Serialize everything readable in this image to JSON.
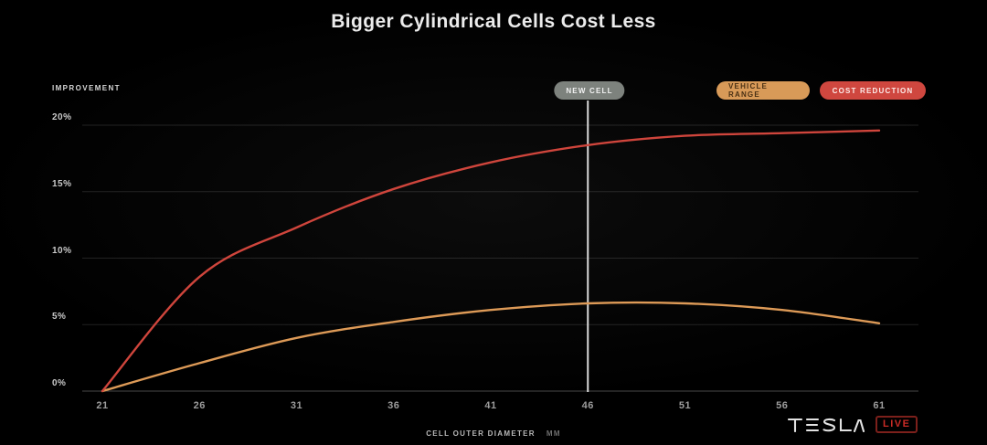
{
  "title": "Bigger Cylindrical Cells Cost Less",
  "ylabel": "IMPROVEMENT",
  "annotation": {
    "label": "NEW CELL",
    "x": 46
  },
  "legend": [
    {
      "label": "VEHICLE RANGE",
      "bg": "#d89a58",
      "fg": "#4a3115"
    },
    {
      "label": "COST REDUCTION",
      "bg": "#cf473f",
      "fg": "#fdecea"
    }
  ],
  "xaxis": {
    "title": "CELL OUTER DIAMETER",
    "unit": "MM"
  },
  "brand": {
    "wordmark": "TESLA",
    "live_label": "LIVE"
  },
  "chart_data": {
    "type": "line",
    "title": "Bigger Cylindrical Cells Cost Less",
    "xlabel": "CELL OUTER DIAMETER (MM)",
    "ylabel": "IMPROVEMENT",
    "x": [
      21,
      26,
      31,
      36,
      41,
      46,
      51,
      56,
      61
    ],
    "xtick_labels": [
      "21",
      "26",
      "31",
      "36",
      "41",
      "46",
      "51",
      "56",
      "61"
    ],
    "yticks": [
      0,
      5,
      10,
      15,
      20
    ],
    "ytick_labels": [
      "0%",
      "5%",
      "10%",
      "15%",
      "20%"
    ],
    "xlim": [
      21,
      61
    ],
    "ylim": [
      0,
      20
    ],
    "grid": true,
    "legend_position": "top-right",
    "annotation_line": {
      "label": "NEW CELL",
      "x": 46
    },
    "series": [
      {
        "name": "VEHICLE RANGE",
        "color": "#dd9a57",
        "values": [
          0,
          2.1,
          4.0,
          5.2,
          6.1,
          6.6,
          6.6,
          6.1,
          5.1
        ]
      },
      {
        "name": "COST REDUCTION",
        "color": "#cf453c",
        "values": [
          0,
          8.6,
          12.3,
          15.2,
          17.2,
          18.5,
          19.2,
          19.4,
          19.6
        ]
      }
    ]
  }
}
